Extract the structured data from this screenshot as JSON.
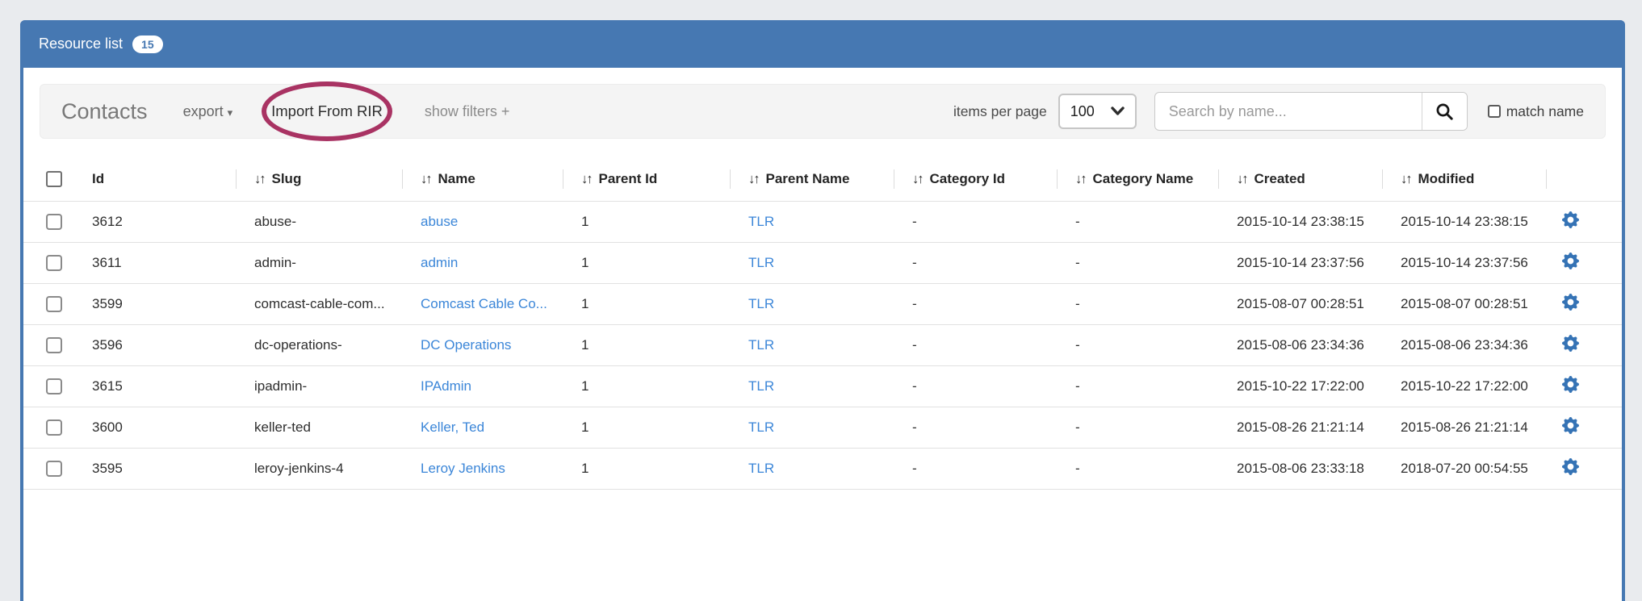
{
  "panel": {
    "title": "Resource list",
    "count": "15"
  },
  "toolbar": {
    "title": "Contacts",
    "export_label": "export",
    "export_caret": "▾",
    "import_label": "Import From RIR",
    "filters_label": "show filters +",
    "items_per_page_label": "items per page",
    "items_per_page_value": "100",
    "search_placeholder": "Search by name...",
    "match_name_label": "match name"
  },
  "table": {
    "sort_icon": "↓↑",
    "columns": [
      {
        "key": "id",
        "label": "Id",
        "sortable": false,
        "link": false
      },
      {
        "key": "slug",
        "label": "Slug",
        "sortable": true,
        "link": false
      },
      {
        "key": "name",
        "label": "Name",
        "sortable": true,
        "link": true
      },
      {
        "key": "parent_id",
        "label": "Parent Id",
        "sortable": true,
        "link": false
      },
      {
        "key": "parent_name",
        "label": "Parent Name",
        "sortable": true,
        "link": true
      },
      {
        "key": "category_id",
        "label": "Category Id",
        "sortable": true,
        "link": false
      },
      {
        "key": "category_name",
        "label": "Category Name",
        "sortable": true,
        "link": false
      },
      {
        "key": "created",
        "label": "Created",
        "sortable": true,
        "link": false
      },
      {
        "key": "modified",
        "label": "Modified",
        "sortable": true,
        "link": false
      }
    ],
    "rows": [
      {
        "id": "3612",
        "slug": "abuse-",
        "name": "abuse",
        "parent_id": "1",
        "parent_name": "TLR",
        "category_id": "-",
        "category_name": "-",
        "created": "2015-10-14 23:38:15",
        "modified": "2015-10-14 23:38:15"
      },
      {
        "id": "3611",
        "slug": "admin-",
        "name": "admin",
        "parent_id": "1",
        "parent_name": "TLR",
        "category_id": "-",
        "category_name": "-",
        "created": "2015-10-14 23:37:56",
        "modified": "2015-10-14 23:37:56"
      },
      {
        "id": "3599",
        "slug": "comcast-cable-com...",
        "name": "Comcast Cable Co...",
        "parent_id": "1",
        "parent_name": "TLR",
        "category_id": "-",
        "category_name": "-",
        "created": "2015-08-07 00:28:51",
        "modified": "2015-08-07 00:28:51"
      },
      {
        "id": "3596",
        "slug": "dc-operations-",
        "name": "DC Operations",
        "parent_id": "1",
        "parent_name": "TLR",
        "category_id": "-",
        "category_name": "-",
        "created": "2015-08-06 23:34:36",
        "modified": "2015-08-06 23:34:36"
      },
      {
        "id": "3615",
        "slug": "ipadmin-",
        "name": "IPAdmin",
        "parent_id": "1",
        "parent_name": "TLR",
        "category_id": "-",
        "category_name": "-",
        "created": "2015-10-22 17:22:00",
        "modified": "2015-10-22 17:22:00"
      },
      {
        "id": "3600",
        "slug": "keller-ted",
        "name": "Keller, Ted",
        "parent_id": "1",
        "parent_name": "TLR",
        "category_id": "-",
        "category_name": "-",
        "created": "2015-08-26 21:21:14",
        "modified": "2015-08-26 21:21:14"
      },
      {
        "id": "3595",
        "slug": "leroy-jenkins-4",
        "name": "Leroy Jenkins",
        "parent_id": "1",
        "parent_name": "TLR",
        "category_id": "-",
        "category_name": "-",
        "created": "2015-08-06 23:33:18",
        "modified": "2018-07-20 00:54:55"
      }
    ],
    "row_action_icon": "gear-icon"
  },
  "colors": {
    "accent_blue": "#4678b2",
    "link_blue": "#3b86d8",
    "gear_blue": "#3573b5",
    "annotation_ellipse": "#a93363",
    "page_background": "#e9ebee"
  }
}
